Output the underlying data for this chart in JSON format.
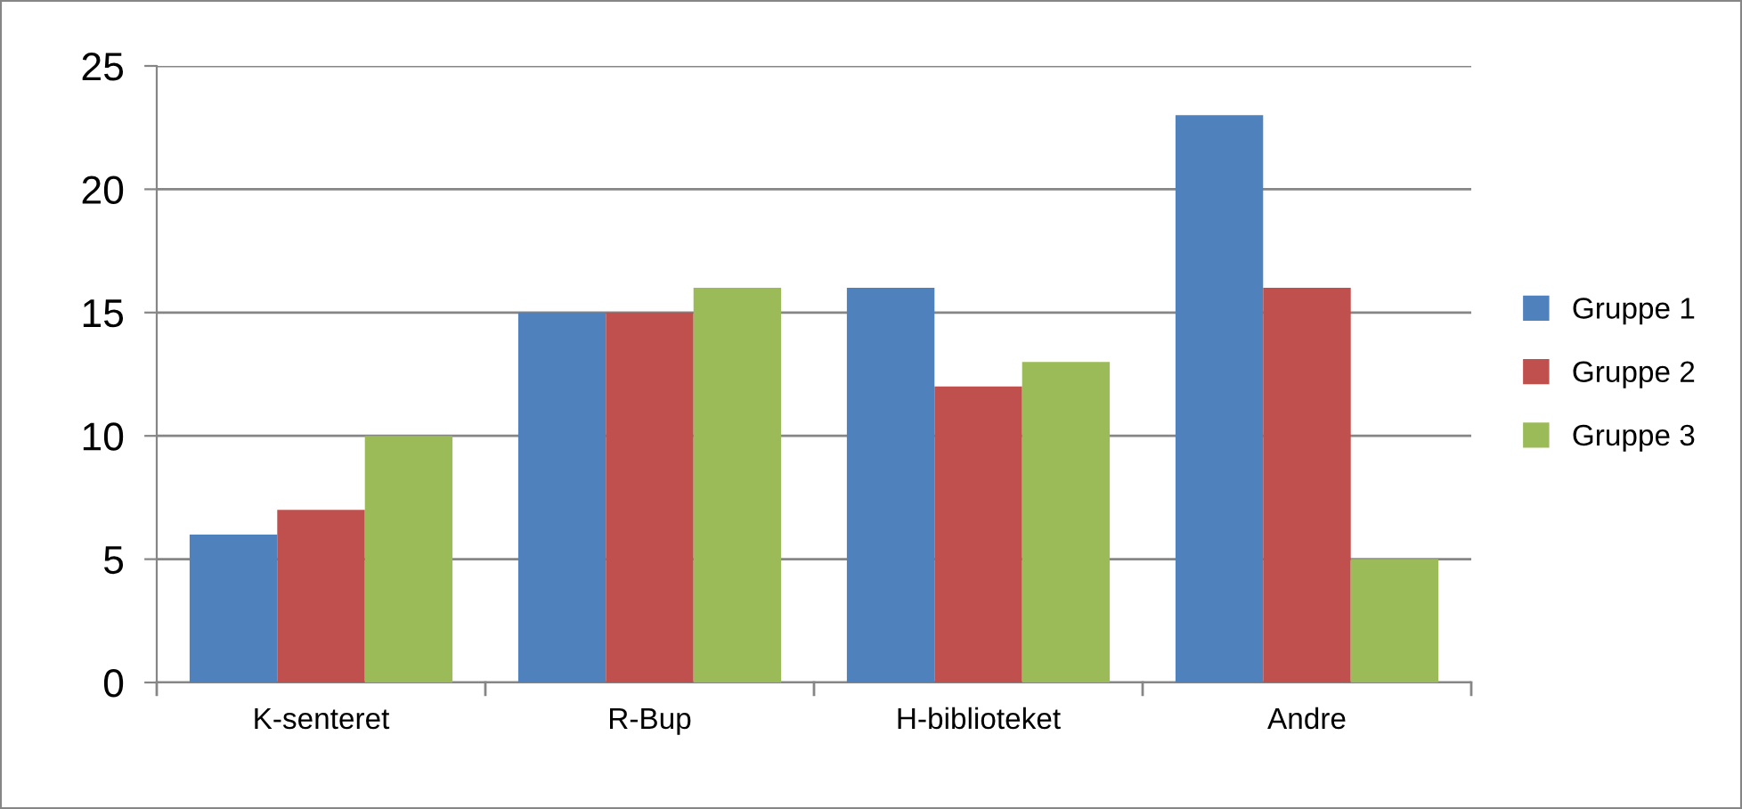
{
  "chart_data": {
    "type": "bar",
    "categories": [
      "K-senteret",
      "R-Bup",
      "H-biblioteket",
      "Andre"
    ],
    "series": [
      {
        "name": "Gruppe 1",
        "color": "#4f81bd",
        "values": [
          6,
          15,
          16,
          23
        ]
      },
      {
        "name": "Gruppe 2",
        "color": "#c0504d",
        "values": [
          7,
          15,
          12,
          16
        ]
      },
      {
        "name": "Gruppe 3",
        "color": "#9bbb59",
        "values": [
          10,
          16,
          13,
          5
        ]
      }
    ],
    "ylim": [
      0,
      25
    ],
    "yticks": [
      0,
      5,
      10,
      15,
      20,
      25
    ],
    "grid": "y",
    "legend": "right"
  }
}
